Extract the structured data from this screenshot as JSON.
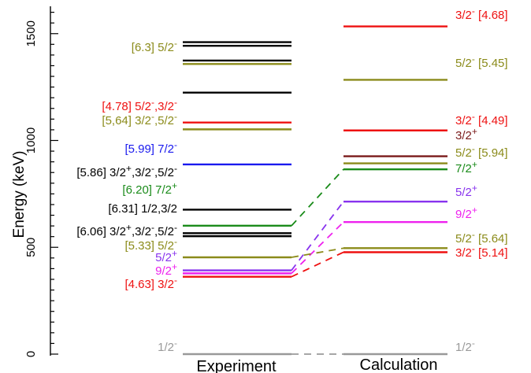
{
  "chart_data": {
    "type": "level-scheme",
    "ylabel": "Energy (keV)",
    "ylim": [
      0,
      1600
    ],
    "yticks": [
      0,
      500,
      1000,
      1500
    ],
    "columns": [
      {
        "name": "experiment",
        "label": "Experiment"
      },
      {
        "name": "calculation",
        "label": "Calculation"
      }
    ],
    "colors": {
      "gray": "#999999",
      "black": "#000000",
      "red": "#ee1111",
      "olive": "#8b8b1a",
      "blue": "#1a1aee",
      "green": "#1a8b1a",
      "purple": "#8833ee",
      "magenta": "#ee22ee",
      "maroon": "#7a1a1a"
    },
    "experiment_levels": [
      {
        "energy": 0,
        "color": "gray",
        "label": "1/2",
        "sup": "-"
      },
      {
        "energy": 362,
        "color": "red",
        "label": "[4.63] 3/2",
        "sup": "-"
      },
      {
        "energy": 378,
        "color": "magenta",
        "label": "9/2",
        "sup": "+"
      },
      {
        "energy": 392,
        "color": "purple",
        "label": "5/2",
        "sup": "+"
      },
      {
        "energy": 453,
        "color": "olive",
        "label": "[5.33] 5/2",
        "sup": "-"
      },
      {
        "energy": 552,
        "color": "black",
        "label": "[6.06] 3/2",
        "sup": "+",
        "tail": ",3/2",
        "sup2": "-",
        "tail2": ",5/2",
        "sup3": "-"
      },
      {
        "energy": 566,
        "color": "black",
        "label": "",
        "sup": ""
      },
      {
        "energy": 601,
        "color": "green",
        "label": "[6.20] 7/2",
        "sup": "+"
      },
      {
        "energy": 676,
        "color": "black",
        "label": "[6.31] 1/2,3/2",
        "sup": ""
      },
      {
        "energy": 888,
        "color": "blue",
        "label": "[5.99] 7/2",
        "sup": "-"
      },
      {
        "energy": 1052,
        "color": "olive",
        "label": "[5,64] 3/2",
        "sup": "-",
        "tail": ",5/2",
        "sup2": "-"
      },
      {
        "energy": 1084,
        "color": "red",
        "label": "[4.78] 5/2",
        "sup": "-",
        "tail": ",3/2",
        "sup2": "-"
      },
      {
        "energy": 1224,
        "color": "black",
        "label": "",
        "sup": ""
      },
      {
        "energy": 1358,
        "color": "olive",
        "label": "[6.3] 5/2",
        "sup": "-"
      },
      {
        "energy": 1374,
        "color": "black",
        "label": "",
        "sup": ""
      },
      {
        "energy": 1443,
        "color": "black",
        "label": "",
        "sup": ""
      },
      {
        "energy": 1460,
        "color": "black",
        "label": "",
        "sup": ""
      }
    ],
    "extra_experiment_label": {
      "text": "[5.86] 3/2",
      "sup": "+",
      "tail": ",3/2",
      "sup2": "-",
      "tail2": ",5/2",
      "sup3": "-",
      "color": "black"
    },
    "calculation_levels": [
      {
        "energy": 0,
        "color": "gray",
        "label": "1/2",
        "sup": "-"
      },
      {
        "energy": 477,
        "color": "red",
        "label": "3/2",
        "sup": "-",
        "tail": " [5.14]"
      },
      {
        "energy": 496,
        "color": "olive",
        "label": "5/2",
        "sup": "-",
        "tail": " [5.64]"
      },
      {
        "energy": 618,
        "color": "magenta",
        "label": "9/2",
        "sup": "+"
      },
      {
        "energy": 714,
        "color": "purple",
        "label": "5/2",
        "sup": "+"
      },
      {
        "energy": 865,
        "color": "green",
        "label": "7/2",
        "sup": "+"
      },
      {
        "energy": 893,
        "color": "olive",
        "label": "5/2",
        "sup": "-",
        "tail": " [5.94]"
      },
      {
        "energy": 926,
        "color": "maroon",
        "label": "3/2",
        "sup": "+"
      },
      {
        "energy": 1047,
        "color": "red",
        "label": "3/2",
        "sup": "-",
        "tail": " [4.49]"
      },
      {
        "energy": 1284,
        "color": "olive",
        "label": "5/2",
        "sup": "-",
        "tail": " [5.45]"
      },
      {
        "energy": 1534,
        "color": "red",
        "label": "3/2",
        "sup": "-",
        "tail": " [4.68]"
      }
    ],
    "connections": [
      {
        "from": 0,
        "to": 0,
        "color": "gray"
      },
      {
        "from": 362,
        "to": 477,
        "color": "red"
      },
      {
        "from": 378,
        "to": 618,
        "color": "magenta"
      },
      {
        "from": 392,
        "to": 714,
        "color": "purple"
      },
      {
        "from": 453,
        "to": 496,
        "color": "olive"
      },
      {
        "from": 601,
        "to": 865,
        "color": "green"
      }
    ]
  }
}
